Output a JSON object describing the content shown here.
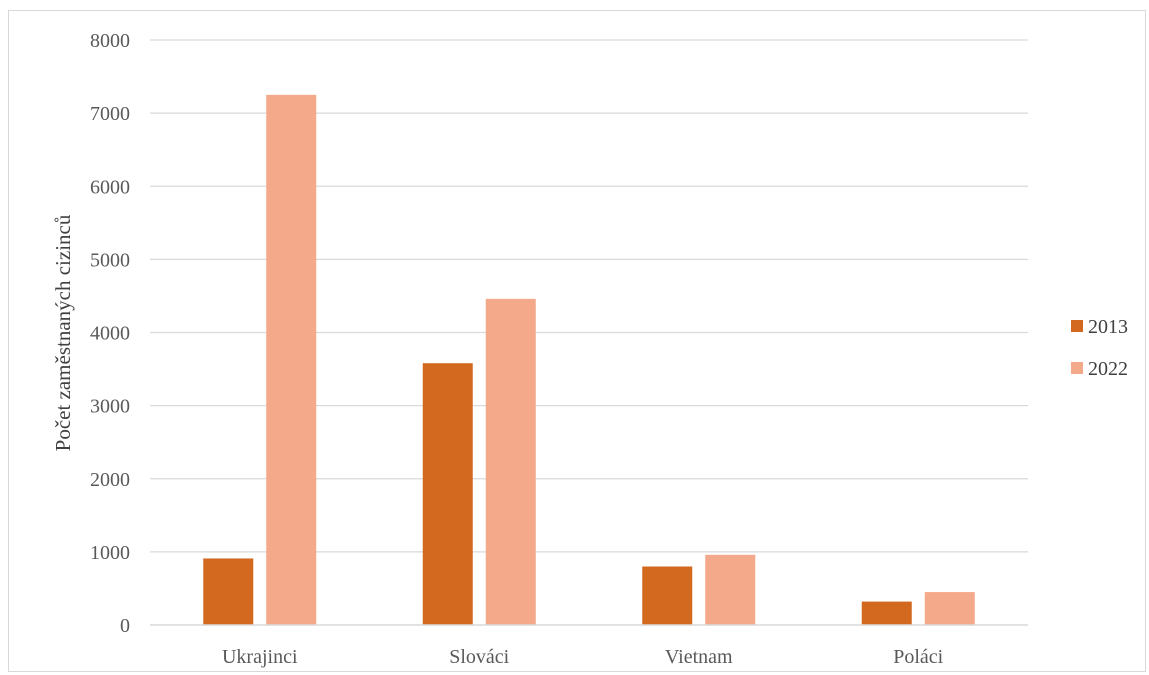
{
  "chart_data": {
    "type": "bar",
    "title": "",
    "xlabel": "",
    "ylabel": "Počet zaměstnaných cizinců",
    "categories": [
      "Ukrajinci",
      "Slováci",
      "Vietnam",
      "Poláci"
    ],
    "series": [
      {
        "name": "2013",
        "color": "#d2691e",
        "values": [
          910,
          3580,
          800,
          320
        ]
      },
      {
        "name": "2022",
        "color": "#f4a98a",
        "values": [
          7250,
          4460,
          960,
          450
        ]
      }
    ],
    "ylim": [
      0,
      8000
    ],
    "yticks": [
      "0",
      "1000",
      "2000",
      "3000",
      "4000",
      "5000",
      "6000",
      "7000",
      "8000"
    ],
    "grid": true,
    "legend": "right"
  }
}
